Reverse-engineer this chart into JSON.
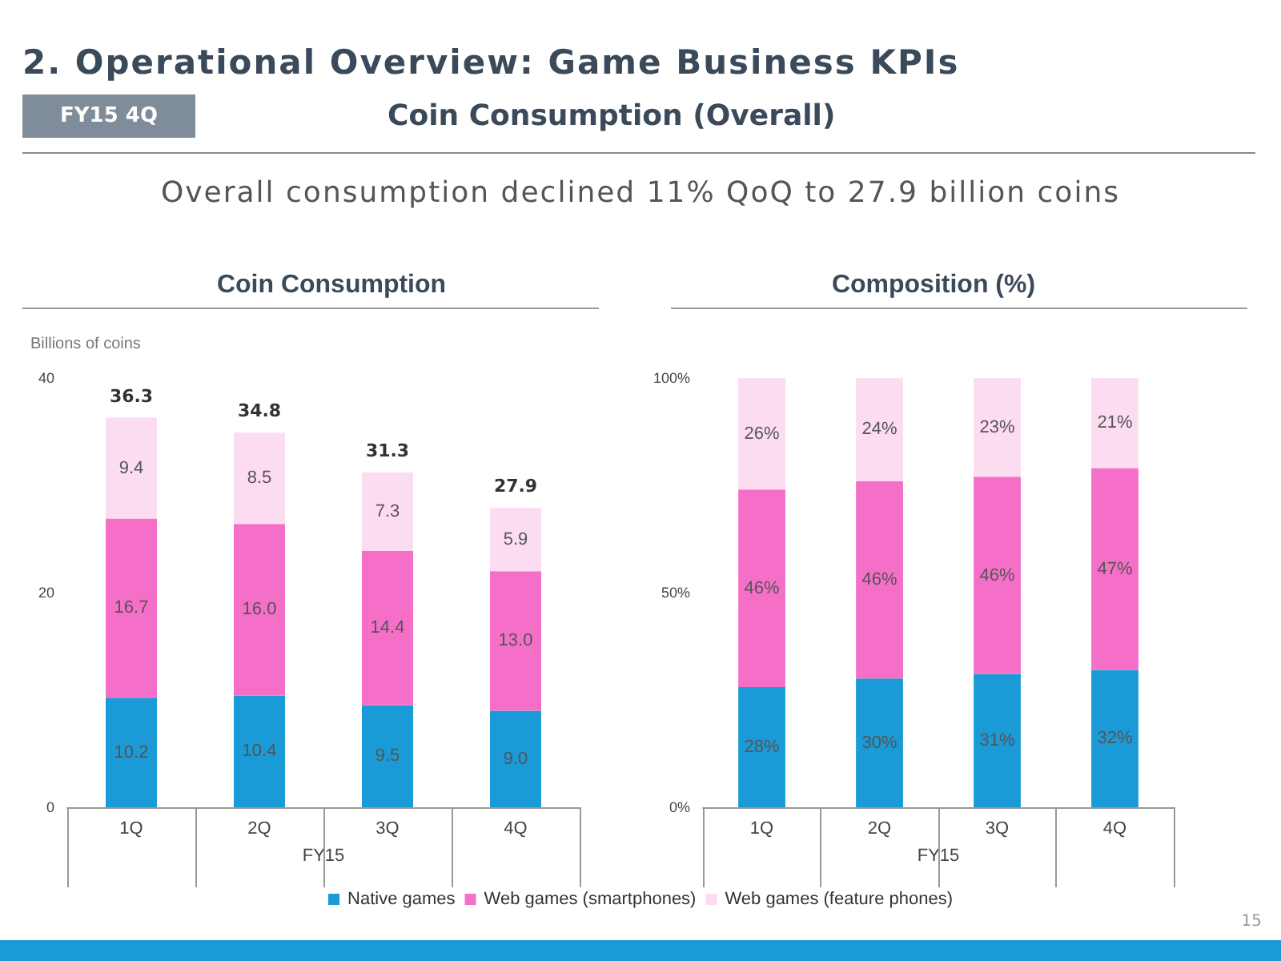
{
  "chart_data": [
    {
      "type": "other",
      "title": "2. Operational Overview: Game Business KPIs",
      "subtitle": "Coin Consumption (Overall)",
      "annotations": [
        "FY15 4Q",
        "Overall consumption declined 11% QoQ to 27.9 billion coins",
        "15"
      ]
    },
    {
      "type": "bar",
      "title": "Coin Consumption",
      "ylabel": "Billions of coins",
      "xlabel": "FY15",
      "categories": [
        "1Q",
        "2Q",
        "3Q",
        "4Q"
      ],
      "stacked": true,
      "totals": [
        "36.3",
        "34.8",
        "31.3",
        "27.9"
      ],
      "ylim": [
        0,
        40
      ],
      "yticks": [
        0,
        20,
        40
      ],
      "grid": false,
      "legend": "bottom",
      "series": [
        {
          "name": "Native games",
          "color": "#1a9ad6",
          "values": [
            10.2,
            10.4,
            9.5,
            9.0
          ],
          "value_labels": [
            "10.2",
            "10.4",
            "9.5",
            "9.0"
          ]
        },
        {
          "name": "Web games (smartphones)",
          "color": "#f56fc8",
          "values": [
            16.7,
            16.0,
            14.4,
            13.0
          ],
          "value_labels": [
            "16.7",
            "16.0",
            "14.4",
            "13.0"
          ]
        },
        {
          "name": "Web games (feature phones)",
          "color": "#fcdcf1",
          "values": [
            9.4,
            8.5,
            7.3,
            5.9
          ],
          "value_labels": [
            "9.4",
            "8.5",
            "7.3",
            "5.9"
          ]
        }
      ]
    },
    {
      "type": "bar",
      "title": "Composition (%)",
      "xlabel": "FY15",
      "categories": [
        "1Q",
        "2Q",
        "3Q",
        "4Q"
      ],
      "stacked": true,
      "ylim": [
        0,
        100
      ],
      "yticks": [
        {
          "value": 0,
          "label": "0%"
        },
        {
          "value": 50,
          "label": "50%"
        },
        {
          "value": 100,
          "label": "100%"
        }
      ],
      "grid": false,
      "series": [
        {
          "color": "#1a9ad6",
          "values": [
            28,
            30,
            31,
            32
          ],
          "value_labels": [
            "28%",
            "30%",
            "31%",
            "32%"
          ]
        },
        {
          "color": "#f56fc8",
          "values": [
            46,
            46,
            46,
            47
          ],
          "value_labels": [
            "46%",
            "46%",
            "46%",
            "47%"
          ]
        },
        {
          "color": "#fcdcf1",
          "values": [
            26,
            24,
            23,
            21
          ],
          "value_labels": [
            "26%",
            "24%",
            "23%",
            "21%"
          ]
        }
      ]
    }
  ]
}
